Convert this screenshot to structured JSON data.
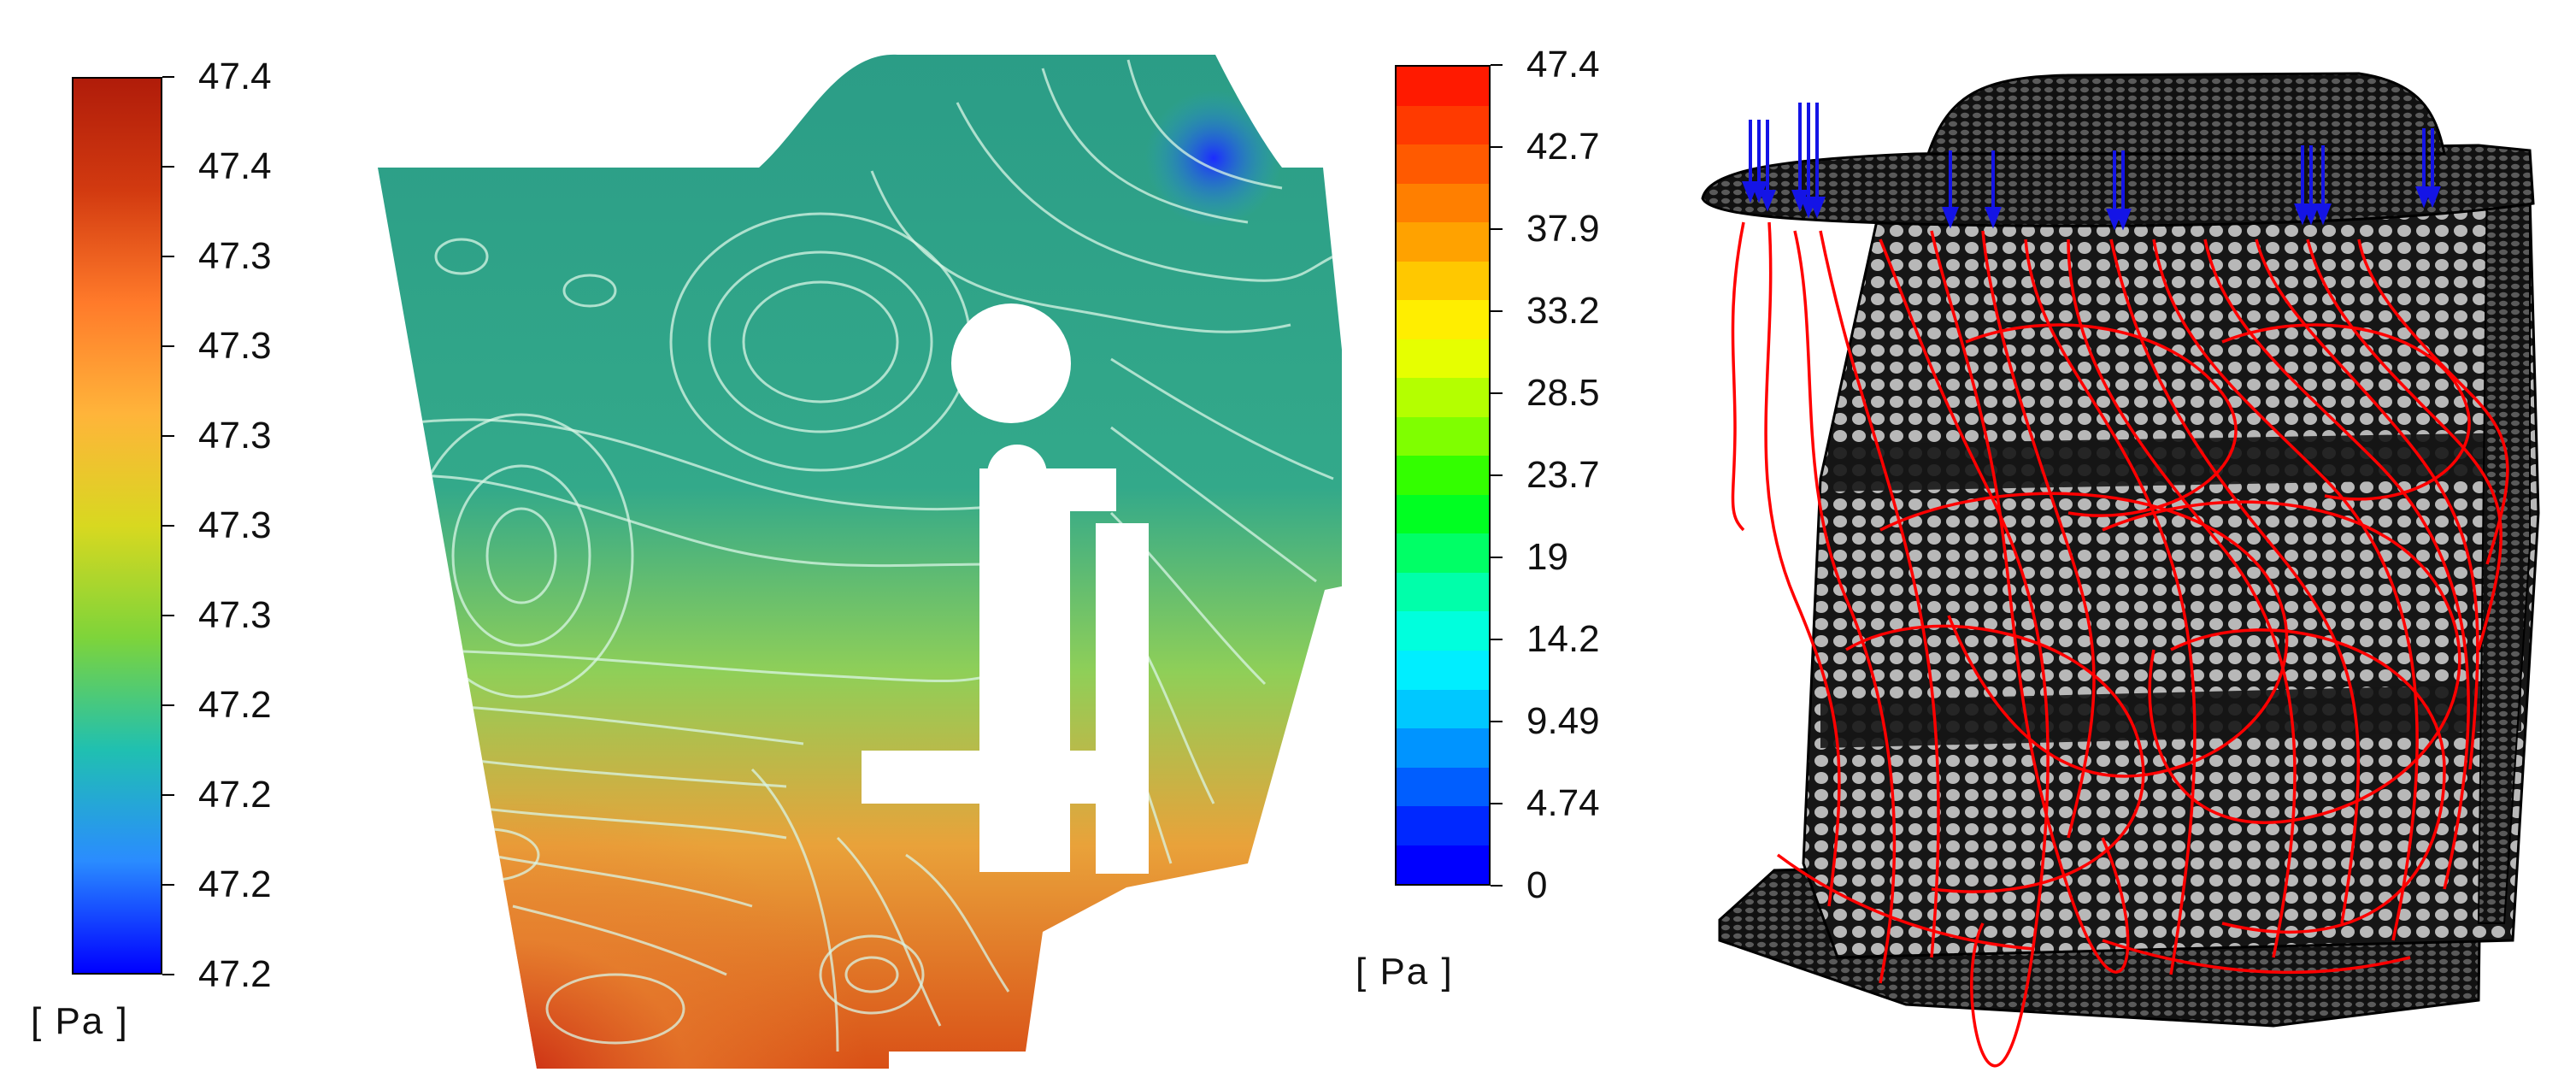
{
  "figure": {
    "left_colorbar": {
      "ticks": [
        "47.4",
        "47.4",
        "47.3",
        "47.3",
        "47.3",
        "47.3",
        "47.3",
        "47.2",
        "47.2",
        "47.2",
        "47.2"
      ],
      "unit": "[ Pa ]",
      "gradient": [
        "#0000ff",
        "#2a8cff",
        "#20c0b0",
        "#7ed43a",
        "#d8d820",
        "#ffb43a",
        "#ff7a2a",
        "#d23a10",
        "#b01c0a"
      ]
    },
    "right_colorbar": {
      "ticks": [
        "47.4",
        "42.7",
        "37.9",
        "33.2",
        "28.5",
        "23.7",
        "19",
        "14.2",
        "9.49",
        "4.74",
        "0"
      ],
      "unit": "[ Pa ]",
      "bands": [
        "#ff1a00",
        "#ff3a00",
        "#ff5a00",
        "#ff7f00",
        "#ffa200",
        "#ffc800",
        "#ffee00",
        "#e6ff00",
        "#b4ff00",
        "#7fff00",
        "#33ff00",
        "#00ff22",
        "#00ff66",
        "#00ffaa",
        "#00ffdd",
        "#00eeff",
        "#00c8ff",
        "#0094ff",
        "#005eff",
        "#0028ff",
        "#0000ff"
      ]
    },
    "colors": {
      "streamline": "#ff0000",
      "inlet_arrow": "#1414e6",
      "mesh_background": "#1a1a1a",
      "mesh_cell": "#b9b9b9"
    }
  }
}
